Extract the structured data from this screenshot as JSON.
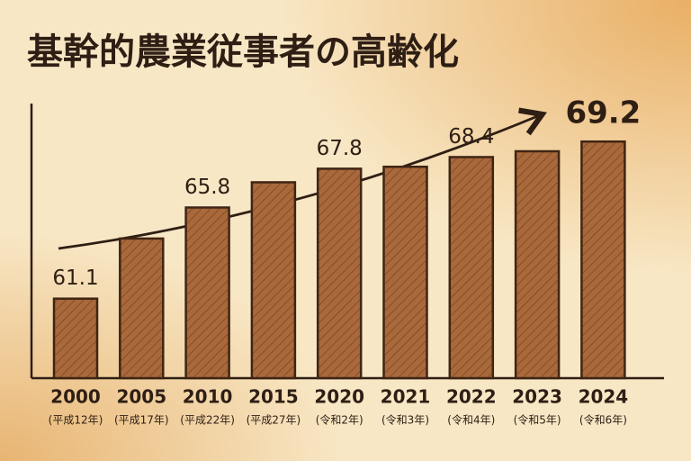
{
  "chart_data": {
    "type": "bar",
    "title": "基幹的農業従事者の高齢化",
    "categories": [
      "2000",
      "2005",
      "2010",
      "2015",
      "2020",
      "2021",
      "2022",
      "2023",
      "2024"
    ],
    "sublabels": [
      "(平成12年)",
      "(平成17年)",
      "(平成22年)",
      "(平成27年)",
      "(令和2年)",
      "(令和3年)",
      "(令和4年)",
      "(令和5年)",
      "(令和6年)"
    ],
    "values": [
      61.1,
      64.2,
      65.8,
      67.1,
      67.8,
      67.9,
      68.4,
      68.7,
      69.2
    ],
    "value_labels": [
      "61.1",
      null,
      "65.8",
      null,
      "67.8",
      null,
      "68.4",
      null,
      "69.2"
    ],
    "color": "#a9693b",
    "ylim": [
      57,
      70
    ]
  }
}
